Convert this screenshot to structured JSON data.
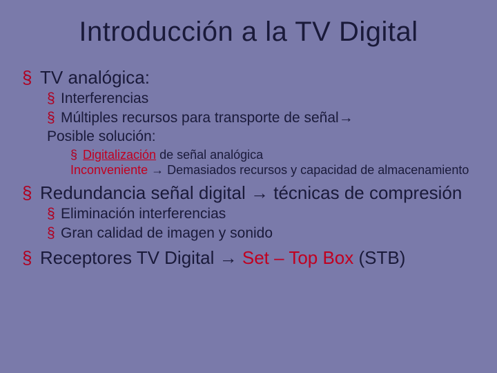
{
  "colors": {
    "background": "#7a7aaa",
    "text": "#1a1a3a",
    "bullet": "#b00020",
    "accent": "#c00020"
  },
  "typography": {
    "font_family": "Arial",
    "title_size_pt": 40,
    "lvl1_size_pt": 26,
    "lvl2_size_pt": 21,
    "lvl3_size_pt": 18
  },
  "title": "Introducción a la TV Digital",
  "b1": {
    "text": "TV analógica:",
    "sub1": "Interferencias",
    "sub2": "Múltiples recursos para transporte de señal→",
    "sub2_cont": "Posible solución:",
    "d1_red": "Digitalización",
    "d1_rest": " de señal analógica",
    "d2_red": "Inconveniente",
    "d2_arrow": " → ",
    "d2_rest": "Demasiados recursos y capacidad de almacenamiento"
  },
  "b2": {
    "text": "Redundancia señal digital → técnicas de compresión",
    "sub1": "Eliminación interferencias",
    "sub2": "Gran calidad de imagen y sonido"
  },
  "b3": {
    "pre": "Receptores TV Digital → ",
    "red": "Set – Top Box",
    "post": " (STB)"
  }
}
